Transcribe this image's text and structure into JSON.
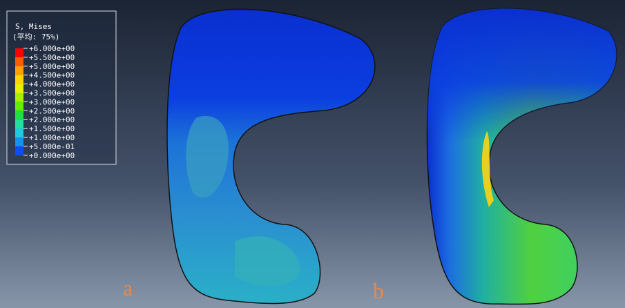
{
  "legend": {
    "title": "S, Mises",
    "subtitle": "(平均: 75%)",
    "labels": [
      "+6.000e+00",
      "+5.500e+00",
      "+5.000e+00",
      "+4.500e+00",
      "+4.000e+00",
      "+3.500e+00",
      "+3.000e+00",
      "+2.500e+00",
      "+2.000e+00",
      "+1.500e+00",
      "+1.000e+00",
      "+5.000e-01",
      "+0.000e+00"
    ]
  },
  "panels": [
    {
      "label": "a"
    },
    {
      "label": "b"
    }
  ]
}
